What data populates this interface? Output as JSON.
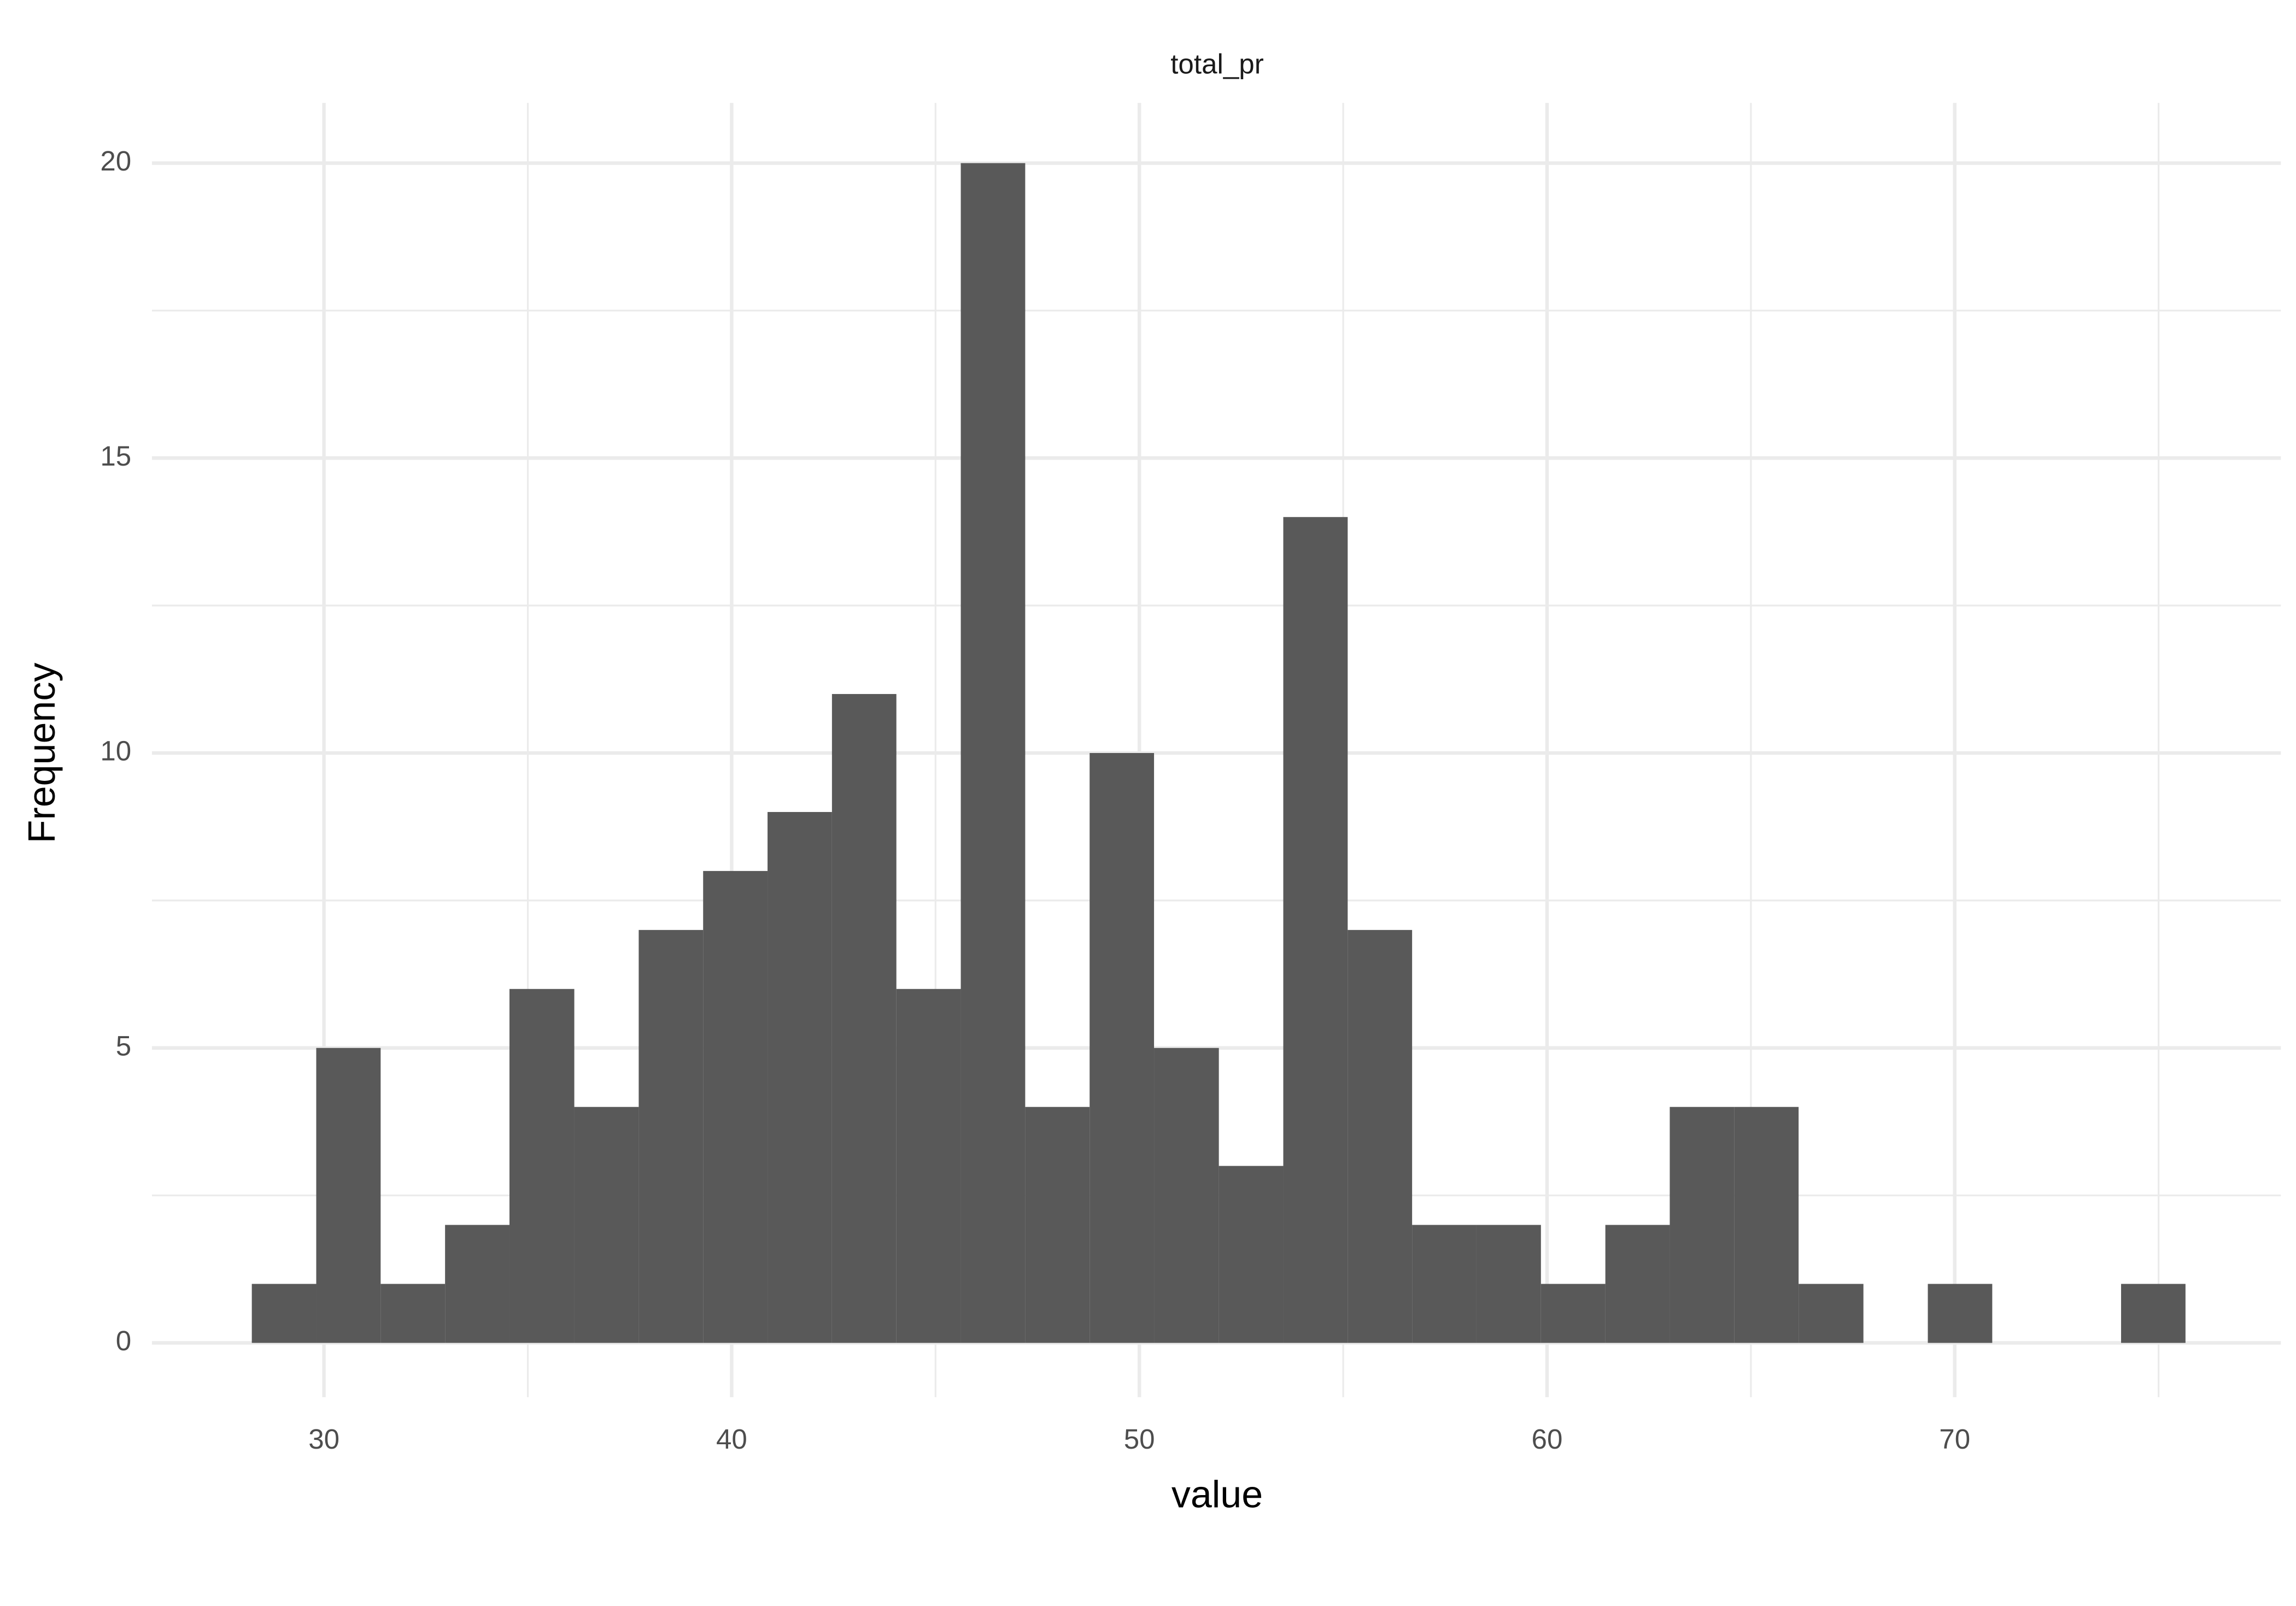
{
  "chart_data": {
    "type": "histogram",
    "title": "total_pr",
    "x_label": "value",
    "y_label": "Frequency",
    "bins": [
      28.23,
      29.81,
      31.39,
      32.97,
      34.55,
      36.14,
      37.72,
      39.3,
      40.88,
      42.46,
      44.04,
      45.62,
      47.2,
      48.78,
      50.36,
      51.95,
      53.53,
      55.11,
      56.69,
      58.27,
      59.85,
      61.43,
      63.01,
      64.59,
      66.17,
      67.76,
      69.34,
      70.92,
      72.5,
      74.08,
      75.66
    ],
    "values": [
      1,
      5,
      1,
      2,
      6,
      4,
      7,
      8,
      9,
      11,
      6,
      20,
      4,
      10,
      5,
      3,
      14,
      7,
      2,
      2,
      1,
      2,
      4,
      4,
      1,
      0,
      1,
      0,
      0,
      1
    ],
    "color": "#595959",
    "xlim": [
      25.78,
      78.0
    ],
    "xticks": [
      30,
      40,
      50,
      60,
      70
    ],
    "xminorticks": [
      35,
      45,
      55,
      65,
      75
    ],
    "ylim": [
      -0.92,
      21.02
    ],
    "yticks": [
      0,
      5,
      10,
      15,
      20
    ],
    "yminorticks": [
      2.5,
      7.5,
      12.5,
      17.5
    ],
    "grid": true
  }
}
